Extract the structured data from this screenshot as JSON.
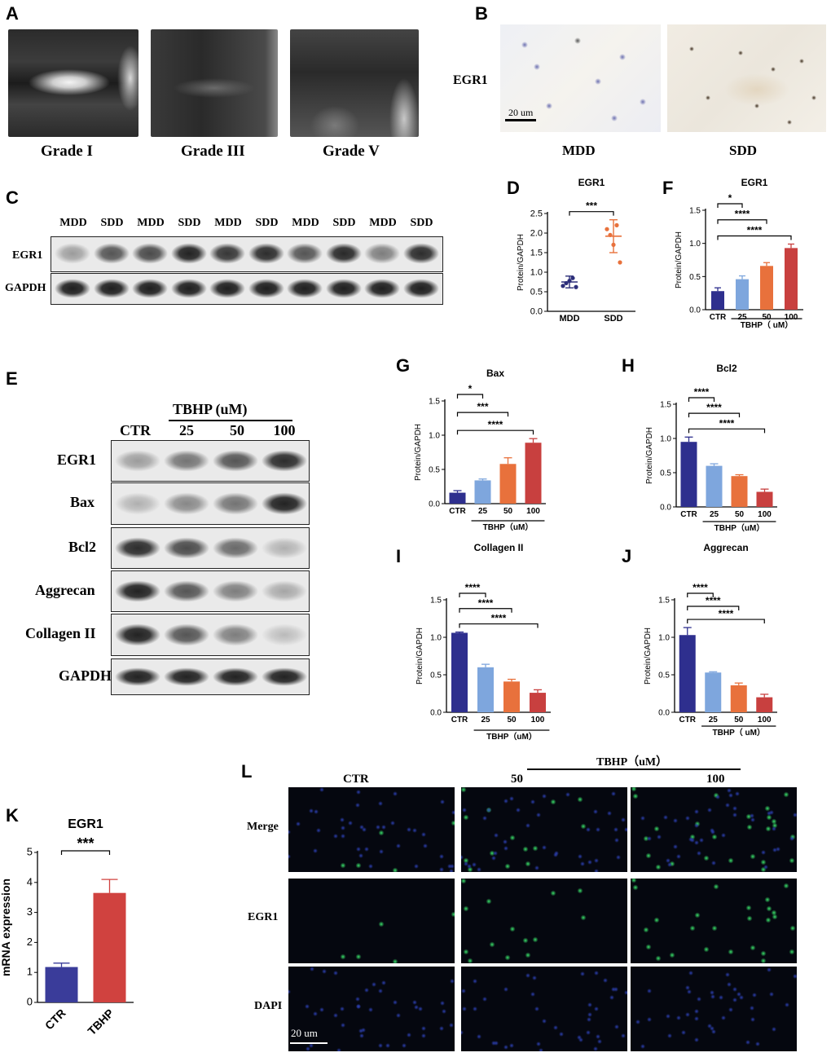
{
  "panels": {
    "A": "A",
    "B": "B",
    "C": "C",
    "D": "D",
    "E": "E",
    "F": "F",
    "G": "G",
    "H": "H",
    "I": "I",
    "J": "J",
    "K": "K",
    "L": "L"
  },
  "mri": {
    "labels": [
      "Grade I",
      "Grade III",
      "Grade V"
    ]
  },
  "ihc": {
    "row_label": "EGR1",
    "scale": "20 um",
    "groups": [
      "MDD",
      "SDD"
    ]
  },
  "blot_c": {
    "lanes": [
      "MDD",
      "SDD",
      "MDD",
      "SDD",
      "MDD",
      "SDD",
      "MDD",
      "SDD",
      "MDD",
      "SDD"
    ],
    "rows": [
      "EGR1",
      "GAPDH"
    ],
    "egr1_intensity": [
      0.35,
      0.7,
      0.75,
      0.95,
      0.85,
      0.9,
      0.7,
      0.92,
      0.5,
      0.9
    ]
  },
  "blot_e": {
    "header": "TBHP (uM)",
    "lanes": [
      "CTR",
      "25",
      "50",
      "100"
    ],
    "rows": [
      "EGR1",
      "Bax",
      "Bcl2",
      "Aggrecan",
      "Collagen II",
      "GAPDH"
    ],
    "intensity": {
      "EGR1": [
        0.35,
        0.55,
        0.7,
        0.9
      ],
      "Bax": [
        0.25,
        0.45,
        0.55,
        0.95
      ],
      "Bcl2": [
        0.9,
        0.75,
        0.6,
        0.25
      ],
      "Aggrecan": [
        0.95,
        0.7,
        0.5,
        0.3
      ],
      "Collagen II": [
        0.95,
        0.7,
        0.5,
        0.2
      ],
      "GAPDH": [
        0.95,
        0.95,
        0.95,
        0.95
      ]
    }
  },
  "if_l": {
    "header": "TBHP（uM）",
    "columns": [
      "CTR",
      "50",
      "100"
    ],
    "rows": [
      "Merge",
      "EGR1",
      "DAPI"
    ],
    "scale": "20 um"
  },
  "chart_data": [
    {
      "id": "D",
      "type": "scatter",
      "title": "EGR1",
      "ylabel": "Protein/GAPDH",
      "categories": [
        "MDD",
        "SDD"
      ],
      "ylim": [
        0.0,
        2.5
      ],
      "yticks": [
        "0.0",
        "0.5",
        "1.0",
        "1.5",
        "2.0",
        "2.5"
      ],
      "means": [
        0.75,
        1.92
      ],
      "sd": [
        0.15,
        0.42
      ],
      "points": [
        [
          0.65,
          0.72,
          0.78,
          0.85,
          0.62
        ],
        [
          2.1,
          1.95,
          1.7,
          2.2,
          1.25
        ]
      ],
      "colors": [
        "#2d2f7a",
        "#e8713c"
      ],
      "significance": [
        {
          "from": 0,
          "to": 1,
          "label": "***"
        }
      ]
    },
    {
      "id": "F",
      "type": "bar",
      "title": "EGR1",
      "ylabel": "Protein/GAPDH",
      "categories": [
        "CTR",
        "25",
        "50",
        "100"
      ],
      "group_label": "TBHP（ uM）",
      "values": [
        0.28,
        0.46,
        0.66,
        0.93
      ],
      "errors": [
        0.05,
        0.05,
        0.05,
        0.06
      ],
      "ylim": [
        0.0,
        1.5
      ],
      "yticks": [
        "0.0",
        "0.5",
        "1.0",
        "1.5"
      ],
      "colors": [
        "#2e2f8e",
        "#7ea6dd",
        "#e8713c",
        "#c8403f"
      ],
      "significance": [
        {
          "from": 0,
          "to": 1,
          "label": "*"
        },
        {
          "from": 0,
          "to": 2,
          "label": "****"
        },
        {
          "from": 0,
          "to": 3,
          "label": "****"
        }
      ]
    },
    {
      "id": "G",
      "type": "bar",
      "title": "Bax",
      "ylabel": "Protein/GAPDH",
      "categories": [
        "CTR",
        "25",
        "50",
        "100"
      ],
      "group_label": "TBHP（uM）",
      "values": [
        0.16,
        0.34,
        0.58,
        0.89
      ],
      "errors": [
        0.03,
        0.02,
        0.09,
        0.06
      ],
      "ylim": [
        0.0,
        1.5
      ],
      "yticks": [
        "0.0",
        "0.5",
        "1.0",
        "1.5"
      ],
      "colors": [
        "#2e2f8e",
        "#7ea6dd",
        "#e8713c",
        "#c8403f"
      ],
      "significance": [
        {
          "from": 0,
          "to": 1,
          "label": "*"
        },
        {
          "from": 0,
          "to": 2,
          "label": "***"
        },
        {
          "from": 0,
          "to": 3,
          "label": "****"
        }
      ]
    },
    {
      "id": "H",
      "type": "bar",
      "title": "Bcl2",
      "ylabel": "Protein/GAPDH",
      "categories": [
        "CTR",
        "25",
        "50",
        "100"
      ],
      "group_label": "TBHP（uM）",
      "values": [
        0.95,
        0.6,
        0.45,
        0.22
      ],
      "errors": [
        0.07,
        0.03,
        0.02,
        0.04
      ],
      "ylim": [
        0.0,
        1.5
      ],
      "yticks": [
        "0.0",
        "0.5",
        "1.0",
        "1.5"
      ],
      "colors": [
        "#2e2f8e",
        "#7ea6dd",
        "#e8713c",
        "#c8403f"
      ],
      "significance": [
        {
          "from": 0,
          "to": 1,
          "label": "****"
        },
        {
          "from": 0,
          "to": 2,
          "label": "****"
        },
        {
          "from": 0,
          "to": 3,
          "label": "****"
        }
      ]
    },
    {
      "id": "I",
      "type": "bar",
      "title": "Collagen II",
      "ylabel": "Protein/GAPDH",
      "categories": [
        "CTR",
        "25",
        "50",
        "100"
      ],
      "group_label": "TBHP（uM）",
      "values": [
        1.06,
        0.6,
        0.41,
        0.26
      ],
      "errors": [
        0.01,
        0.04,
        0.03,
        0.04
      ],
      "ylim": [
        0.0,
        1.5
      ],
      "yticks": [
        "0.0",
        "0.5",
        "1.0",
        "1.5"
      ],
      "colors": [
        "#2e2f8e",
        "#7ea6dd",
        "#e8713c",
        "#c8403f"
      ],
      "significance": [
        {
          "from": 0,
          "to": 1,
          "label": "****"
        },
        {
          "from": 0,
          "to": 2,
          "label": "****"
        },
        {
          "from": 0,
          "to": 3,
          "label": "****"
        }
      ]
    },
    {
      "id": "J",
      "type": "bar",
      "title": "Aggrecan",
      "ylabel": "Protein/GAPDH",
      "categories": [
        "CTR",
        "25",
        "50",
        "100"
      ],
      "group_label": "TBHP（ uM）",
      "values": [
        1.03,
        0.53,
        0.36,
        0.2
      ],
      "errors": [
        0.1,
        0.01,
        0.03,
        0.04
      ],
      "ylim": [
        0.0,
        1.5
      ],
      "yticks": [
        "0.0",
        "0.5",
        "1.0",
        "1.5"
      ],
      "colors": [
        "#2e2f8e",
        "#7ea6dd",
        "#e8713c",
        "#c8403f"
      ],
      "significance": [
        {
          "from": 0,
          "to": 1,
          "label": "****"
        },
        {
          "from": 0,
          "to": 2,
          "label": "****"
        },
        {
          "from": 0,
          "to": 3,
          "label": "****"
        }
      ]
    },
    {
      "id": "K",
      "type": "bar",
      "title": "EGR1",
      "ylabel": "mRNA expression",
      "categories": [
        "CTR",
        "TBHP"
      ],
      "values": [
        1.18,
        3.65
      ],
      "errors": [
        0.13,
        0.45
      ],
      "ylim": [
        0,
        5
      ],
      "yticks": [
        "0",
        "1",
        "2",
        "3",
        "4",
        "5"
      ],
      "colors": [
        "#3a3c9a",
        "#d0423f"
      ],
      "significance": [
        {
          "from": 0,
          "to": 1,
          "label": "***"
        }
      ]
    }
  ]
}
